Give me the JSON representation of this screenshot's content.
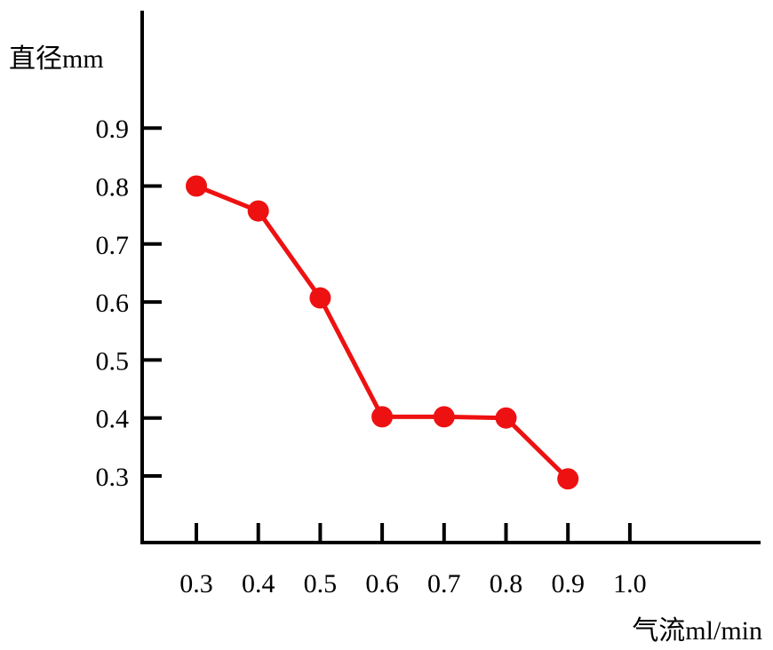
{
  "chart_data": {
    "type": "line",
    "ylabel": "直径mm",
    "xlabel": "气流ml/min",
    "x_ticks": [
      "0.3",
      "0.4",
      "0.5",
      "0.6",
      "0.7",
      "0.8",
      "0.9",
      "1.0"
    ],
    "y_ticks": [
      "0.3",
      "0.4",
      "0.5",
      "0.6",
      "0.7",
      "0.8",
      "0.9"
    ],
    "series": [
      {
        "x": [
          0.3,
          0.4,
          0.5,
          0.6,
          0.7,
          0.8,
          0.9
        ],
        "y": [
          0.8,
          0.757,
          0.607,
          0.402,
          0.402,
          0.4,
          0.295
        ],
        "color": "#ee1111"
      }
    ],
    "axis_color": "#000000",
    "grid": false
  }
}
